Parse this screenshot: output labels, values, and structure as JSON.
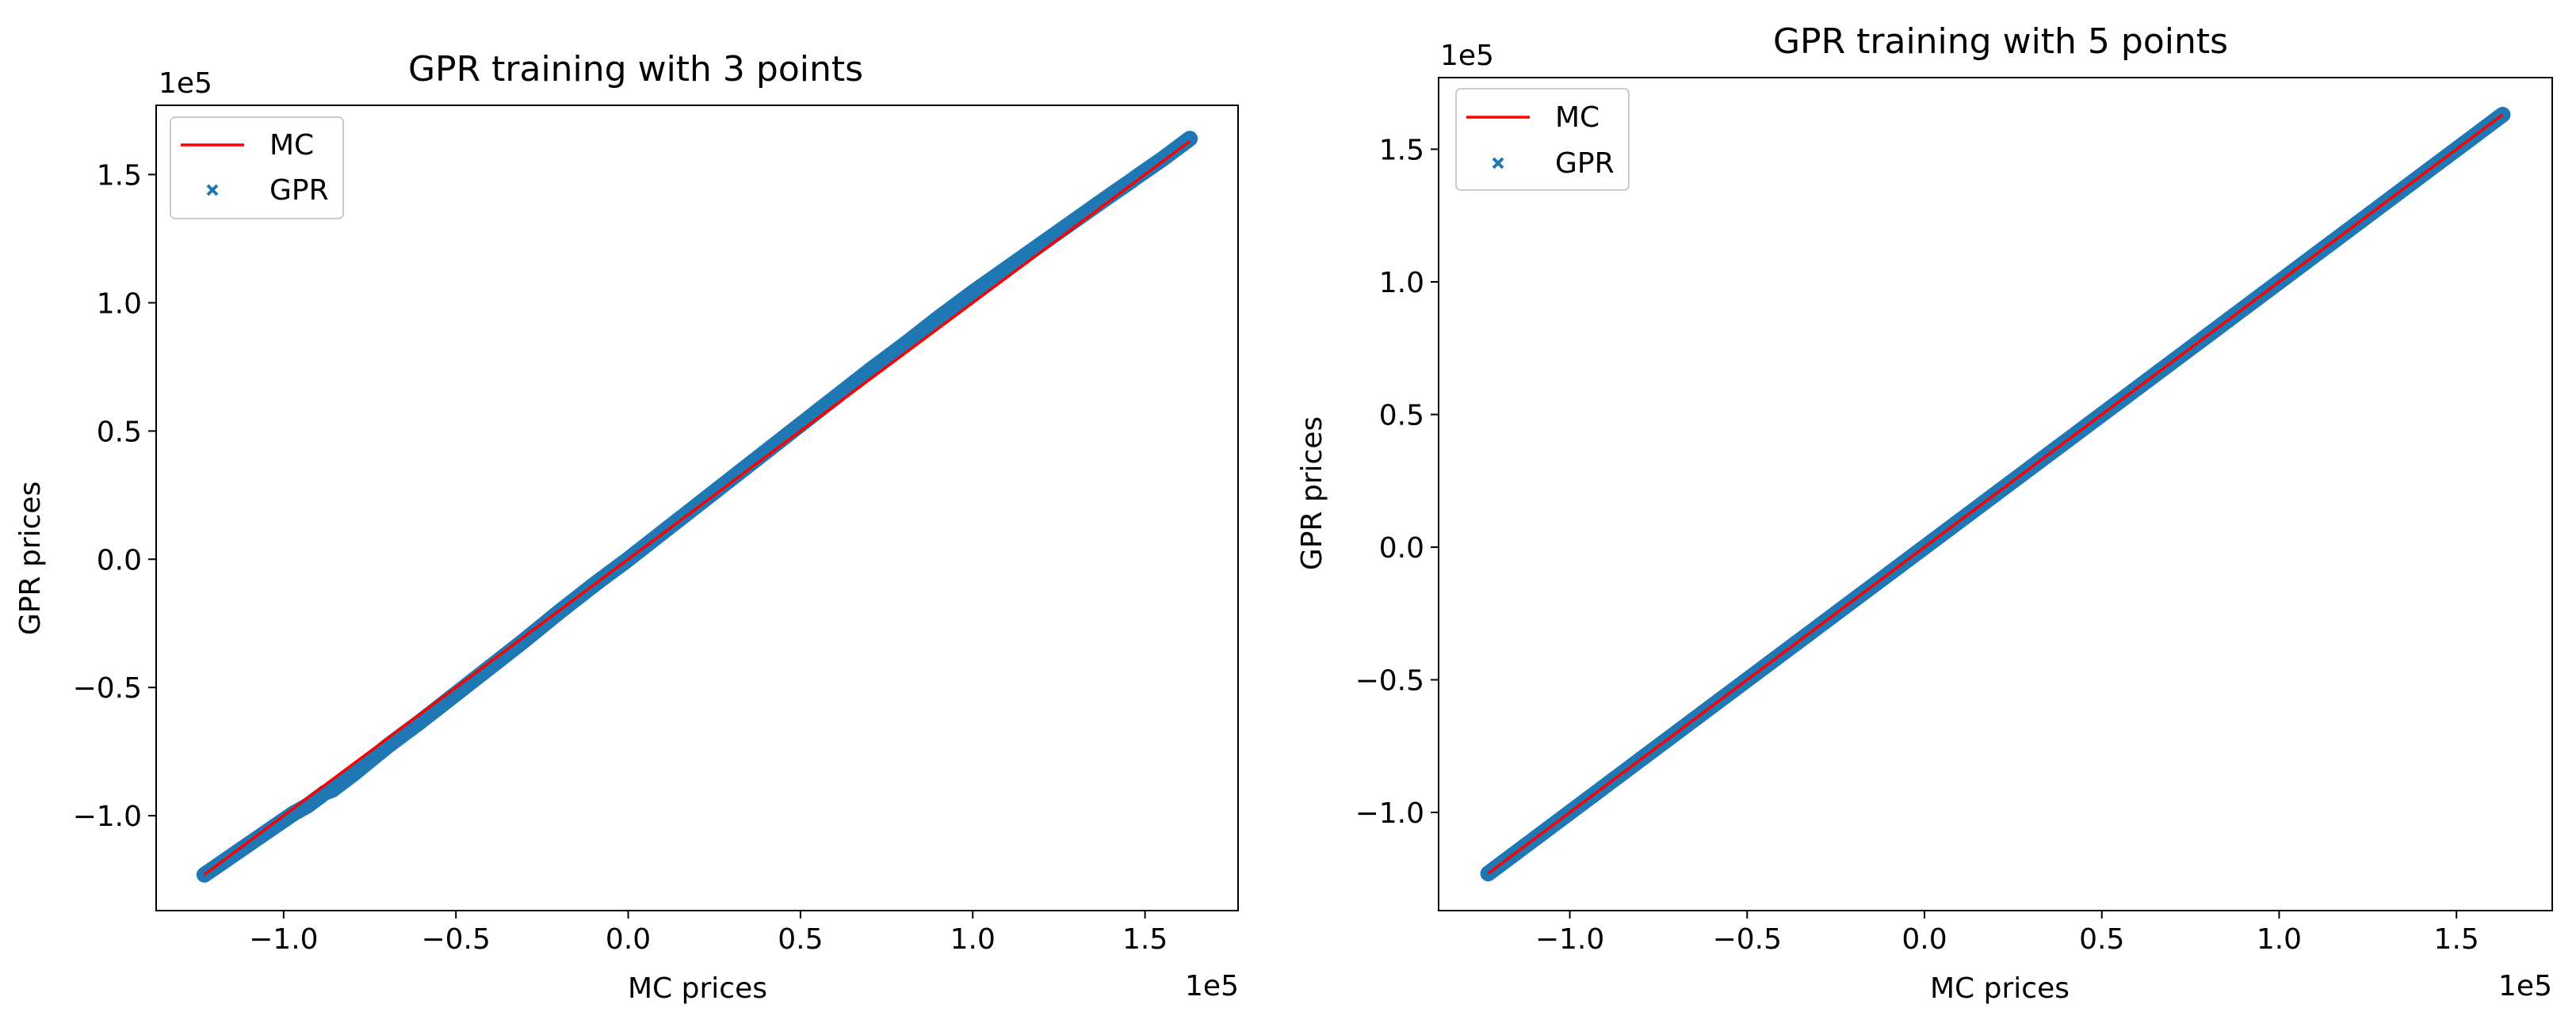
{
  "chart_data": [
    {
      "type": "scatter",
      "title": "GPR training with 3 points",
      "xlabel": "MC prices",
      "ylabel": "GPR prices",
      "x_offset_label": "1e5",
      "y_offset_label": "1e5",
      "xlim": [
        -1.37,
        1.77
      ],
      "ylim": [
        -1.37,
        1.77
      ],
      "xticks": [
        -1.0,
        -0.5,
        0.0,
        0.5,
        1.0,
        1.5
      ],
      "xtick_labels": [
        "−1.0",
        "−0.5",
        "0.0",
        "0.5",
        "1.0",
        "1.5"
      ],
      "yticks": [
        -1.0,
        -0.5,
        0.0,
        0.5,
        1.0,
        1.5
      ],
      "ytick_labels": [
        "−1.0",
        "−0.5",
        "0.0",
        "0.5",
        "1.0",
        "1.5"
      ],
      "grid": false,
      "legend_position": "top-left",
      "series": [
        {
          "name": "MC",
          "kind": "line",
          "color": "#ff0000",
          "x": [
            -1.23,
            1.63
          ],
          "y": [
            -1.23,
            1.63
          ]
        },
        {
          "name": "GPR",
          "kind": "scatter",
          "color": "#1f77b4",
          "marker": "x",
          "x": [
            -1.23,
            -0.97,
            -0.95,
            -0.93,
            -0.88,
            -0.86,
            -0.83,
            -0.8,
            -0.7,
            -0.6,
            -0.5,
            -0.4,
            -0.3,
            -0.2,
            -0.1,
            0.0,
            0.1,
            0.2,
            0.3,
            0.4,
            0.5,
            0.6,
            0.7,
            0.8,
            0.9,
            1.0,
            1.1,
            1.2,
            1.3,
            1.4,
            1.46,
            1.48,
            1.55,
            1.57,
            1.6,
            1.63
          ],
          "y": [
            -1.23,
            -0.99,
            -0.975,
            -0.96,
            -0.91,
            -0.9,
            -0.87,
            -0.84,
            -0.73,
            -0.63,
            -0.525,
            -0.42,
            -0.315,
            -0.205,
            -0.1,
            0.0,
            0.105,
            0.21,
            0.315,
            0.42,
            0.525,
            0.63,
            0.735,
            0.835,
            0.94,
            1.04,
            1.135,
            1.23,
            1.325,
            1.42,
            1.475,
            1.495,
            1.56,
            1.58,
            1.61,
            1.64
          ]
        }
      ]
    },
    {
      "type": "scatter",
      "title": "GPR training with 5 points",
      "xlabel": "MC prices",
      "ylabel": "GPR prices",
      "x_offset_label": "1e5",
      "y_offset_label": "1e5",
      "xlim": [
        -1.37,
        1.77
      ],
      "ylim": [
        -1.37,
        1.77
      ],
      "xticks": [
        -1.0,
        -0.5,
        0.0,
        0.5,
        1.0,
        1.5
      ],
      "xtick_labels": [
        "−1.0",
        "−0.5",
        "0.0",
        "0.5",
        "1.0",
        "1.5"
      ],
      "yticks": [
        -1.0,
        -0.5,
        0.0,
        0.5,
        1.0,
        1.5
      ],
      "ytick_labels": [
        "−1.0",
        "−0.5",
        "0.0",
        "0.5",
        "1.0",
        "1.5"
      ],
      "grid": false,
      "legend_position": "top-left",
      "series": [
        {
          "name": "MC",
          "kind": "line",
          "color": "#ff0000",
          "x": [
            -1.23,
            1.63
          ],
          "y": [
            -1.23,
            1.63
          ]
        },
        {
          "name": "GPR",
          "kind": "scatter",
          "color": "#1f77b4",
          "marker": "x",
          "x": [
            -1.23,
            -0.97,
            -0.95,
            -0.93,
            -0.88,
            -0.86,
            -0.83,
            -0.8,
            -0.7,
            -0.6,
            -0.5,
            -0.4,
            -0.3,
            -0.2,
            -0.1,
            0.0,
            0.1,
            0.2,
            0.3,
            0.4,
            0.5,
            0.6,
            0.7,
            0.8,
            0.9,
            1.0,
            1.1,
            1.2,
            1.3,
            1.4,
            1.46,
            1.48,
            1.55,
            1.57,
            1.6,
            1.63
          ],
          "y": [
            -1.23,
            -0.97,
            -0.95,
            -0.93,
            -0.88,
            -0.86,
            -0.83,
            -0.8,
            -0.7,
            -0.6,
            -0.5,
            -0.4,
            -0.3,
            -0.2,
            -0.1,
            0.0,
            0.1,
            0.2,
            0.3,
            0.4,
            0.5,
            0.6,
            0.7,
            0.8,
            0.9,
            1.0,
            1.1,
            1.2,
            1.3,
            1.4,
            1.46,
            1.48,
            1.55,
            1.57,
            1.6,
            1.63
          ]
        }
      ]
    }
  ]
}
